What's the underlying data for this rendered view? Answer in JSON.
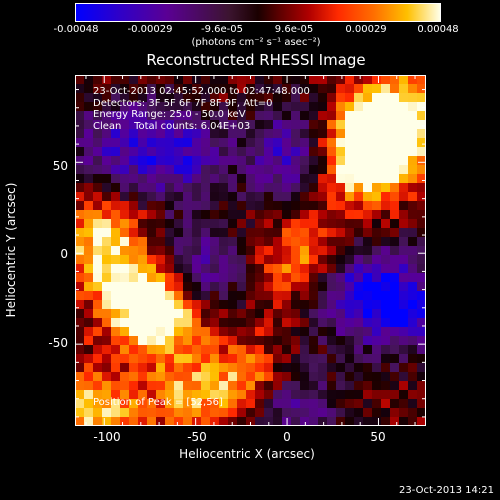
{
  "chart_data": {
    "type": "heatmap",
    "title": "Reconstructed RHESSI Image",
    "xlabel": "Heliocentric X (arcsec)",
    "ylabel": "Heliocentric Y (arcsec)",
    "xlim": [
      -116,
      76
    ],
    "ylim": [
      -95,
      98
    ],
    "x_ticks": [
      "-100",
      "-50",
      "0",
      "50"
    ],
    "x_tick_values": [
      -100,
      -50,
      0,
      50
    ],
    "y_ticks": [
      "-50",
      "0",
      "50"
    ],
    "y_tick_values": [
      -50,
      0,
      50
    ],
    "colorbar": {
      "ticks": [
        "-0.00048",
        "-0.00029",
        "-9.6e-05",
        "9.6e-05",
        "0.00029",
        "0.00048"
      ],
      "tick_values": [
        -0.00048,
        -0.00029,
        -9.6e-05,
        9.6e-05,
        0.00029,
        0.00048
      ],
      "range": [
        -0.00048,
        0.00048
      ],
      "units": "(photons cm⁻² s⁻¹ asec⁻²)"
    },
    "annotations": {
      "time_range": "23-Oct-2013 02:45:52.000 to 02:47:48.000",
      "detectors": "Detectors: 3F 5F 6F 7F 8F 9F, Att=0",
      "energy": "Energy Range: 25.0 - 50.0 keV",
      "clean": "Clean    Total counts: 6.04E+03",
      "peak": "Position of Peak = [52,56]"
    },
    "grid": false,
    "peak_position": [
      52,
      56
    ],
    "bright_regions": [
      {
        "x": 50,
        "y": 60,
        "relative_intensity": 1.0
      },
      {
        "x": 60,
        "y": 75,
        "relative_intensity": 0.95
      },
      {
        "x": 40,
        "y": 50,
        "relative_intensity": 0.85
      },
      {
        "x": -80,
        "y": -25,
        "relative_intensity": 0.95
      },
      {
        "x": -65,
        "y": -35,
        "relative_intensity": 0.8
      },
      {
        "x": -100,
        "y": 5,
        "relative_intensity": 0.85
      },
      {
        "x": -20,
        "y": -70,
        "relative_intensity": 0.7
      },
      {
        "x": 10,
        "y": -5,
        "relative_intensity": 0.7
      },
      {
        "x": -105,
        "y": -85,
        "relative_intensity": 0.75
      },
      {
        "x": -55,
        "y": -80,
        "relative_intensity": 0.6
      }
    ],
    "dark_regions": [
      {
        "x": -60,
        "y": 55,
        "relative_intensity": -0.85
      },
      {
        "x": -95,
        "y": 60,
        "relative_intensity": -0.6
      },
      {
        "x": 0,
        "y": 55,
        "relative_intensity": -0.75
      },
      {
        "x": -50,
        "y": -10,
        "relative_intensity": -0.7
      },
      {
        "x": 35,
        "y": -20,
        "relative_intensity": -0.85
      },
      {
        "x": 65,
        "y": -30,
        "relative_intensity": -0.9
      },
      {
        "x": 0,
        "y": -85,
        "relative_intensity": -0.7
      }
    ]
  },
  "footer": {
    "timestamp": "23-Oct-2013 14:21"
  }
}
